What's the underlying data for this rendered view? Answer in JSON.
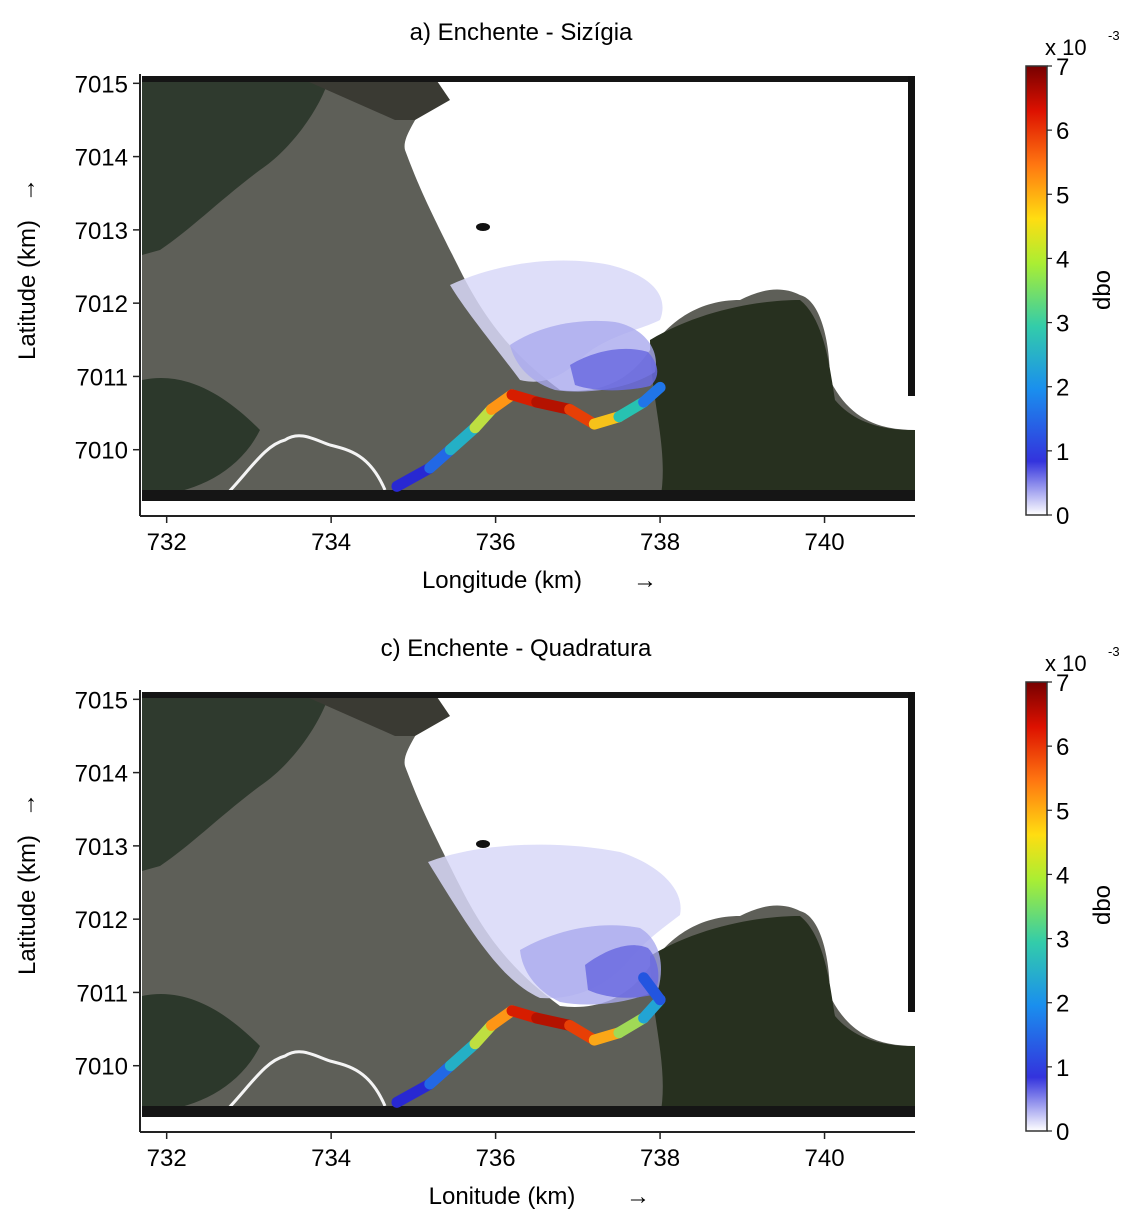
{
  "colorbar": {
    "label": "dbo",
    "multiplier_base": "x 10",
    "multiplier_exp": "-3",
    "min": 0,
    "max": 7,
    "ticks": [
      0,
      1,
      2,
      3,
      4,
      5,
      6,
      7
    ],
    "colors": [
      "#ffffff",
      "#2222cc",
      "#1aa0ee",
      "#33cc77",
      "#eeee22",
      "#ff9922",
      "#dd2200",
      "#770000"
    ]
  },
  "chart_data": [
    {
      "type": "heatmap",
      "title": "a) Enchente - Sizígia",
      "xlabel": "Longitude (km)",
      "ylabel": "Latitude (km)",
      "xlim": [
        731.7,
        741.1
      ],
      "ylim": [
        7009.3,
        7015.1
      ],
      "xticks": [
        732,
        734,
        736,
        738,
        740
      ],
      "yticks": [
        7010,
        7011,
        7012,
        7013,
        7014,
        7015
      ],
      "river_trace": [
        {
          "x": 734.8,
          "y": 7009.5,
          "dbo": 0.6
        },
        {
          "x": 735.2,
          "y": 7009.75,
          "dbo": 1.2
        },
        {
          "x": 735.45,
          "y": 7010.0,
          "dbo": 2.0
        },
        {
          "x": 735.75,
          "y": 7010.3,
          "dbo": 3.2
        },
        {
          "x": 735.95,
          "y": 7010.55,
          "dbo": 4.3
        },
        {
          "x": 736.2,
          "y": 7010.75,
          "dbo": 5.5
        },
        {
          "x": 736.5,
          "y": 7010.65,
          "dbo": 6.6
        },
        {
          "x": 736.9,
          "y": 7010.55,
          "dbo": 6.2
        },
        {
          "x": 737.2,
          "y": 7010.35,
          "dbo": 5.2
        },
        {
          "x": 737.5,
          "y": 7010.45,
          "dbo": 3.6
        },
        {
          "x": 737.8,
          "y": 7010.65,
          "dbo": 2.2
        },
        {
          "x": 738.0,
          "y": 7010.85,
          "dbo": 1.3
        }
      ]
    },
    {
      "type": "heatmap",
      "title": "c) Enchente - Quadratura",
      "xlabel": "Lonitude (km)",
      "ylabel": "Latitude (km)",
      "xlim": [
        731.7,
        741.1
      ],
      "ylim": [
        7009.3,
        7015.1
      ],
      "xticks": [
        732,
        734,
        736,
        738,
        740
      ],
      "yticks": [
        7010,
        7011,
        7012,
        7013,
        7014,
        7015
      ],
      "river_trace": [
        {
          "x": 734.8,
          "y": 7009.5,
          "dbo": 0.6
        },
        {
          "x": 735.2,
          "y": 7009.75,
          "dbo": 1.2
        },
        {
          "x": 735.45,
          "y": 7010.0,
          "dbo": 2.0
        },
        {
          "x": 735.75,
          "y": 7010.3,
          "dbo": 3.2
        },
        {
          "x": 735.95,
          "y": 7010.55,
          "dbo": 4.3
        },
        {
          "x": 736.2,
          "y": 7010.75,
          "dbo": 5.5
        },
        {
          "x": 736.5,
          "y": 7010.65,
          "dbo": 6.6
        },
        {
          "x": 736.9,
          "y": 7010.55,
          "dbo": 6.2
        },
        {
          "x": 737.2,
          "y": 7010.35,
          "dbo": 5.2
        },
        {
          "x": 737.5,
          "y": 7010.45,
          "dbo": 4.2
        },
        {
          "x": 737.8,
          "y": 7010.65,
          "dbo": 3.0
        },
        {
          "x": 738.0,
          "y": 7010.9,
          "dbo": 1.8
        },
        {
          "x": 737.8,
          "y": 7011.2,
          "dbo": 1.0
        }
      ]
    }
  ]
}
